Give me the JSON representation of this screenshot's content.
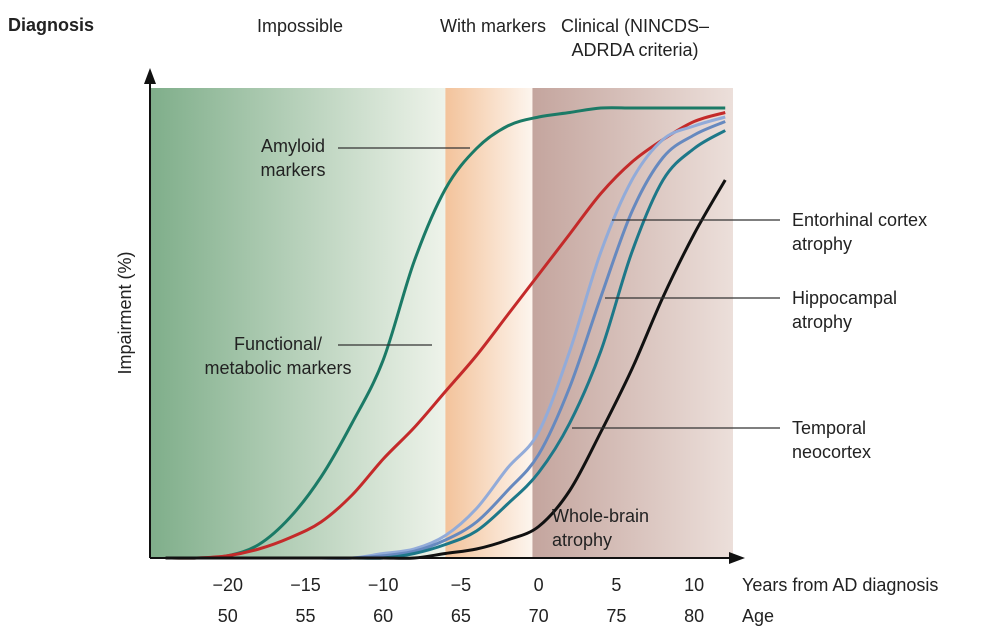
{
  "chart_data": {
    "type": "line",
    "heading": "Diagnosis",
    "ylabel": "Impairment (%)",
    "xlabel": "Years from AD diagnosis",
    "x2label": "Age",
    "xlim": [
      -25,
      12.5
    ],
    "ylim": [
      0,
      100
    ],
    "x2lim": [
      45,
      82.5
    ],
    "xticks": [
      {
        "value": -20,
        "label": "−20"
      },
      {
        "value": -15,
        "label": "−15"
      },
      {
        "value": -10,
        "label": "−10"
      },
      {
        "value": -5,
        "label": "−5"
      },
      0,
      5,
      10
    ],
    "x2ticks": [
      50,
      55,
      60,
      65,
      70,
      75,
      80
    ],
    "regions": [
      {
        "name": "Impossible",
        "range": [
          -25,
          -6
        ],
        "colors": [
          "#7fae8a",
          "#eef3ea"
        ]
      },
      {
        "name": "With markers",
        "range": [
          -6,
          -0.4
        ],
        "colors": [
          "#f3c39b",
          "#fdf5ee"
        ]
      },
      {
        "name": "Clinical (NINCDS–ADRDA criteria)",
        "range": [
          -0.4,
          12.5
        ],
        "colors": [
          "#c4a59e",
          "#ecdfda"
        ]
      }
    ],
    "x": [
      -24,
      -22,
      -20,
      -18,
      -16,
      -14,
      -12,
      -10,
      -8,
      -6,
      -4,
      -2,
      0,
      2,
      4,
      6,
      8,
      10,
      12
    ],
    "series": [
      {
        "name": "Amyloid markers",
        "color": "#1b7a66",
        "values": [
          0,
          0,
          0.5,
          3,
          9,
          18,
          30,
          44,
          66,
          82,
          91,
          96,
          98,
          99,
          100,
          100,
          100,
          100,
          100
        ]
      },
      {
        "name": "Functional/ metabolic markers",
        "color": "#c42a2a",
        "values": [
          0,
          0,
          0.5,
          2,
          4.5,
          8,
          14,
          22,
          29,
          37,
          45,
          54,
          63,
          72,
          81,
          88,
          93,
          97,
          99
        ]
      },
      {
        "name": "Entorhinal cortex atrophy",
        "color": "#92abd9",
        "values": [
          0,
          0,
          0,
          0,
          0,
          0,
          0,
          1,
          2,
          5,
          11,
          20,
          28,
          46,
          68,
          84,
          93,
          96,
          98
        ]
      },
      {
        "name": "Hippocampal atrophy",
        "color": "#6689bf",
        "values": [
          0,
          0,
          0,
          0,
          0,
          0,
          0,
          0.5,
          1.5,
          4,
          8,
          15,
          23,
          38,
          58,
          77,
          89,
          94,
          97
        ]
      },
      {
        "name": "Temporal neocortex",
        "color": "#1d7889",
        "values": [
          0,
          0,
          0,
          0,
          0,
          0,
          0,
          0,
          1,
          3,
          6,
          12,
          19,
          30,
          46,
          68,
          84,
          91,
          95
        ]
      },
      {
        "name": "Whole-brain atrophy",
        "color": "#111111",
        "values": [
          0,
          0,
          0,
          0,
          0,
          0,
          0,
          0,
          0,
          1,
          2,
          4,
          7,
          15,
          28,
          42,
          58,
          72,
          84
        ]
      }
    ]
  }
}
